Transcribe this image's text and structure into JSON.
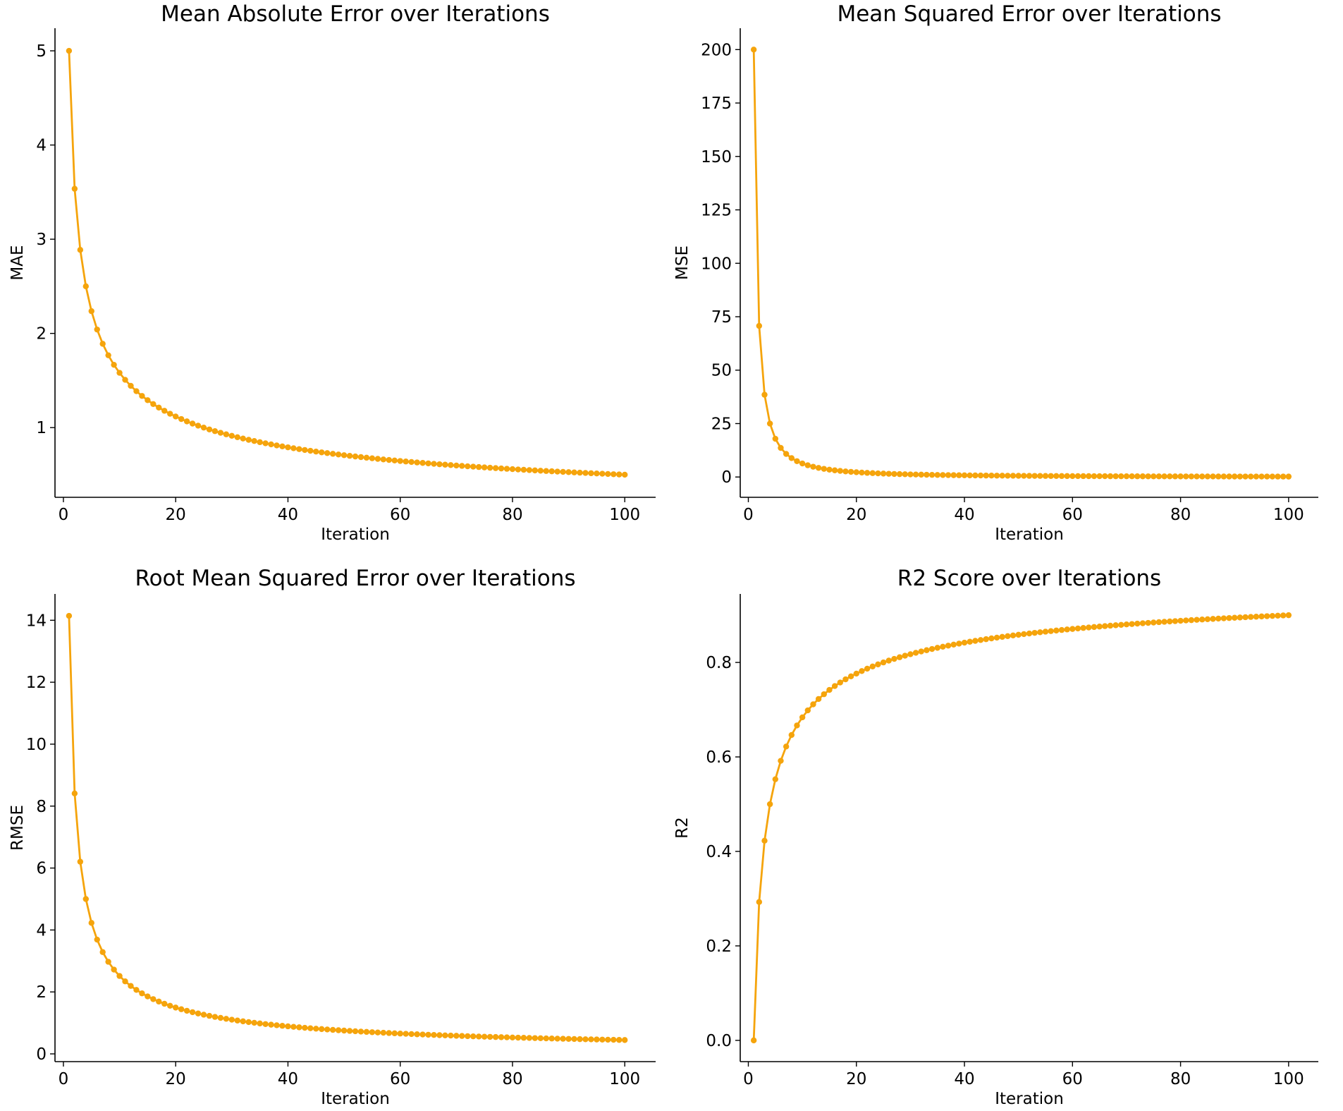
{
  "chart_data": [
    {
      "type": "line",
      "id": "mae",
      "title": "Mean Absolute Error over Iterations",
      "xlabel": "Iteration",
      "ylabel": "MAE",
      "xlim": [
        -1.5,
        105.5
      ],
      "ylim": [
        0.26,
        5.24
      ],
      "xticks": [
        0,
        20,
        40,
        60,
        80,
        100
      ],
      "yticks": [
        1,
        2,
        3,
        4,
        5
      ],
      "ytick_labels": [
        "1",
        "2",
        "3",
        "4",
        "5"
      ],
      "xtick_labels": [
        "0",
        "20",
        "40",
        "60",
        "80",
        "100"
      ],
      "x": "iterations 1-100",
      "formula": "5 / sqrt(iteration)",
      "series": [
        {
          "name": "MAE",
          "color": "#f5a40c"
        }
      ]
    },
    {
      "type": "line",
      "id": "mse",
      "title": "Mean Squared Error over Iterations",
      "xlabel": "Iteration",
      "ylabel": "MSE",
      "xlim": [
        -1.5,
        105.5
      ],
      "ylim": [
        -9.5,
        210
      ],
      "xticks": [
        0,
        20,
        40,
        60,
        80,
        100
      ],
      "yticks": [
        0,
        25,
        50,
        75,
        100,
        125,
        150,
        175,
        200
      ],
      "ytick_labels": [
        "0",
        "25",
        "50",
        "75",
        "100",
        "125",
        "150",
        "175",
        "200"
      ],
      "xtick_labels": [
        "0",
        "20",
        "40",
        "60",
        "80",
        "100"
      ],
      "x": "iterations 1-100",
      "formula": "200 / iteration^1.5",
      "series": [
        {
          "name": "MSE",
          "color": "#f5a40c"
        }
      ]
    },
    {
      "type": "line",
      "id": "rmse",
      "title": "Root Mean Squared Error over Iterations",
      "xlabel": "Iteration",
      "ylabel": "RMSE",
      "xlim": [
        -1.5,
        105.5
      ],
      "ylim": [
        -0.25,
        14.85
      ],
      "xticks": [
        0,
        20,
        40,
        60,
        80,
        100
      ],
      "yticks": [
        0,
        2,
        4,
        6,
        8,
        10,
        12,
        14
      ],
      "ytick_labels": [
        "0",
        "2",
        "4",
        "6",
        "8",
        "10",
        "12",
        "14"
      ],
      "xtick_labels": [
        "0",
        "20",
        "40",
        "60",
        "80",
        "100"
      ],
      "x": "iterations 1-100",
      "formula": "sqrt(200) / iteration^0.75",
      "series": [
        {
          "name": "RMSE",
          "color": "#f5a40c"
        }
      ]
    },
    {
      "type": "line",
      "id": "r2",
      "title": "R2 Score over Iterations",
      "xlabel": "Iteration",
      "ylabel": "R2",
      "xlim": [
        -1.5,
        105.5
      ],
      "ylim": [
        -0.045,
        0.945
      ],
      "xticks": [
        0,
        20,
        40,
        60,
        80,
        100
      ],
      "yticks": [
        0.0,
        0.2,
        0.4,
        0.6,
        0.8
      ],
      "ytick_labels": [
        "0.0",
        "0.2",
        "0.4",
        "0.6",
        "0.8"
      ],
      "xtick_labels": [
        "0",
        "20",
        "40",
        "60",
        "80",
        "100"
      ],
      "x": "iterations 1-100",
      "formula": "1 - 1 / sqrt(iteration) ... capped near 0.9",
      "series": [
        {
          "name": "R2",
          "color": "#f5a40c"
        }
      ]
    }
  ]
}
